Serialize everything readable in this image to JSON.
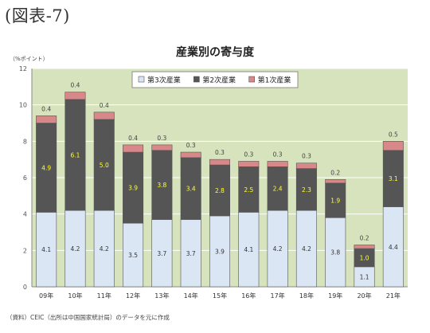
{
  "figure_label": "(図表-7)",
  "unit_label": "（%ポイント）",
  "source_note": "（資料）CEIC（出所は中国国家統計局）のデータを元に作成",
  "colors": {
    "tertiary": "#dbe6f5",
    "secondary": "#555555",
    "primary": "#d9888a",
    "plot_bg": "#d6e3bc",
    "grid": "#ffffff",
    "label_on_dark": "#ffff33"
  },
  "chart_data": {
    "type": "bar",
    "stacked": true,
    "title": "産業別の寄与度",
    "categories": [
      "09年",
      "10年",
      "11年",
      "12年",
      "13年",
      "14年",
      "15年",
      "16年",
      "17年",
      "18年",
      "19年",
      "20年",
      "21年"
    ],
    "series": [
      {
        "name": "第3次産業",
        "values": [
          4.1,
          4.2,
          4.2,
          3.5,
          3.7,
          3.7,
          3.9,
          4.1,
          4.2,
          4.2,
          3.8,
          1.1,
          4.4
        ]
      },
      {
        "name": "第2次産業",
        "values": [
          4.9,
          6.1,
          5.0,
          3.9,
          3.8,
          3.4,
          2.8,
          2.5,
          2.4,
          2.3,
          1.9,
          1.0,
          3.1
        ]
      },
      {
        "name": "第1次産業",
        "values": [
          0.4,
          0.4,
          0.4,
          0.4,
          0.3,
          0.3,
          0.3,
          0.3,
          0.3,
          0.3,
          0.2,
          0.2,
          0.5
        ]
      }
    ],
    "ylim": [
      0,
      12
    ],
    "yticks": [
      0,
      2,
      4,
      6,
      8,
      10,
      12
    ],
    "grid": true,
    "legend_position": "top"
  }
}
